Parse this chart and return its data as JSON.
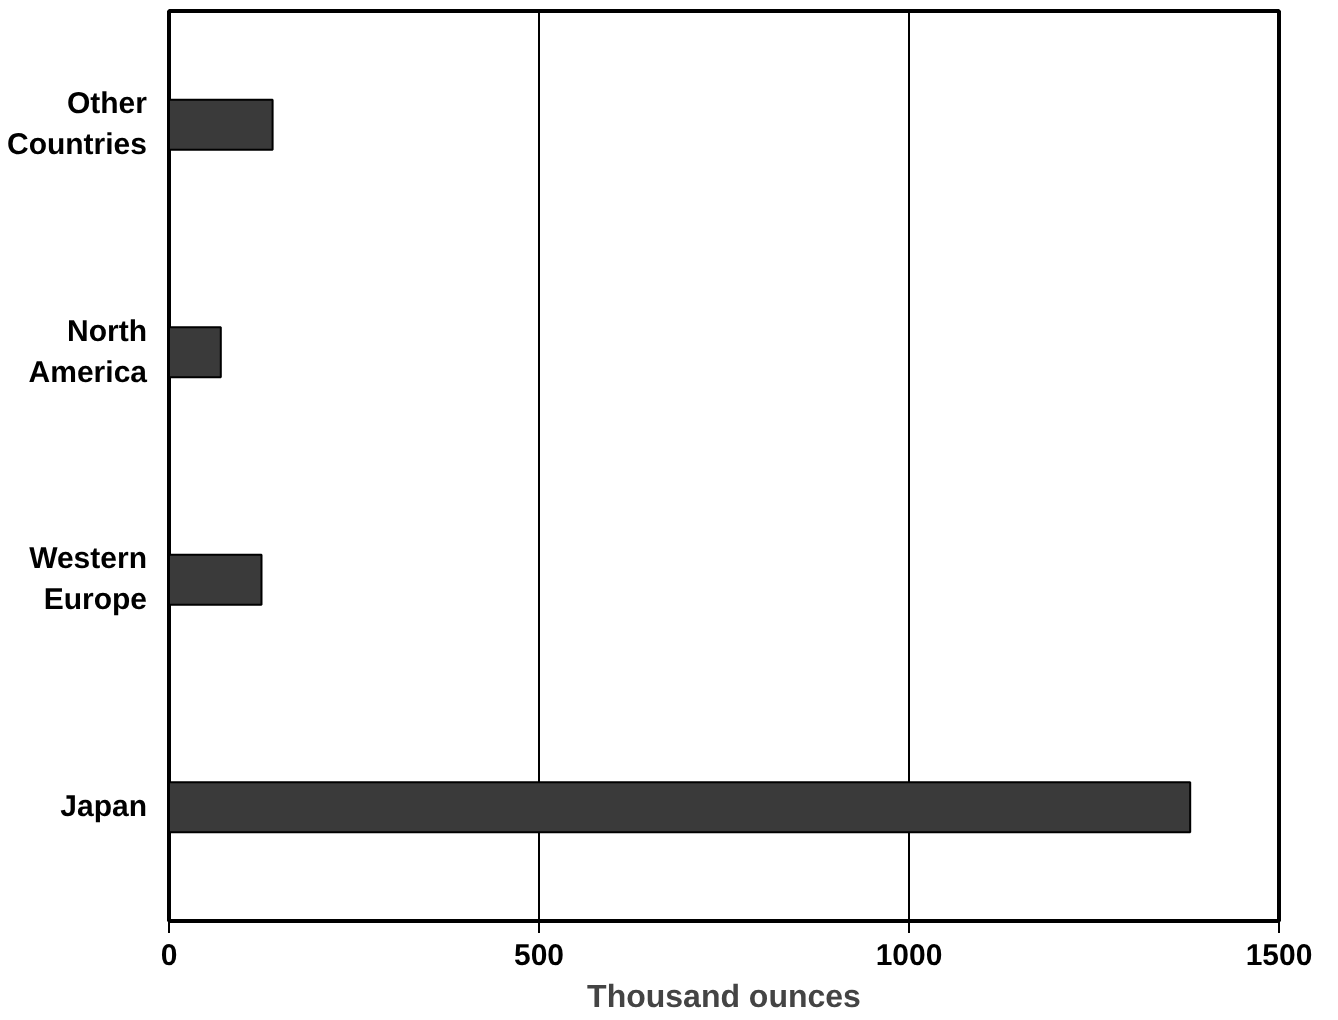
{
  "chart_data": {
    "type": "bar",
    "orientation": "horizontal",
    "xlabel": "Thousand ounces",
    "categories": [
      "Other Countries",
      "North America",
      "Western Europe",
      "Japan"
    ],
    "values": [
      140,
      70,
      125,
      1380
    ],
    "color": "#3a3a3a",
    "xlim": [
      0,
      1500
    ],
    "xticks": [
      0,
      500,
      1000,
      1500
    ],
    "grid": "x"
  }
}
